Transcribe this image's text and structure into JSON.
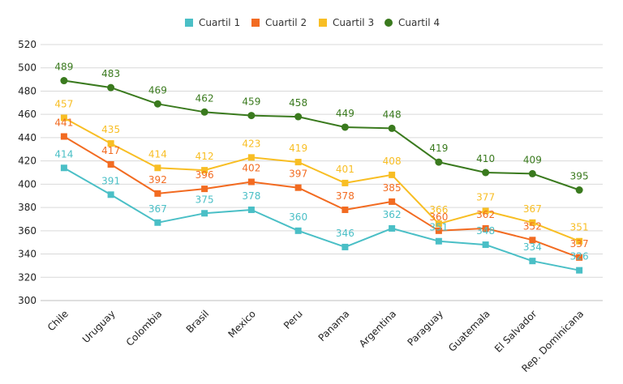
{
  "chart_data": {
    "type": "line",
    "title": "",
    "xlabel": "",
    "ylabel": "",
    "ylim": [
      300,
      520
    ],
    "yticks": [
      300,
      320,
      340,
      360,
      380,
      400,
      420,
      440,
      460,
      480,
      500,
      520
    ],
    "grid": true,
    "legend_position": "top",
    "categories": [
      "Chile",
      "Uruguay",
      "Colombia",
      "Brasil",
      "Mexico",
      "Peru",
      "Panama",
      "Argentina",
      "Paraguay",
      "Guatemala",
      "El Salvador",
      "Rep. Dominicana"
    ],
    "series": [
      {
        "name": "Cuartil 1",
        "color": "#4ABFC6",
        "marker": "square",
        "values": [
          414,
          391,
          367,
          375,
          378,
          360,
          346,
          362,
          351,
          348,
          334,
          326
        ]
      },
      {
        "name": "Cuartil 2",
        "color": "#F26B21",
        "marker": "square",
        "values": [
          441,
          417,
          392,
          396,
          402,
          397,
          378,
          385,
          360,
          362,
          352,
          337
        ]
      },
      {
        "name": "Cuartil 3",
        "color": "#F8BE24",
        "marker": "square",
        "values": [
          457,
          435,
          414,
          412,
          423,
          419,
          401,
          408,
          366,
          377,
          367,
          351
        ]
      },
      {
        "name": "Cuartil 4",
        "color": "#3A7A1E",
        "marker": "circle",
        "values": [
          489,
          483,
          469,
          462,
          459,
          458,
          449,
          448,
          419,
          410,
          409,
          395
        ]
      }
    ]
  }
}
